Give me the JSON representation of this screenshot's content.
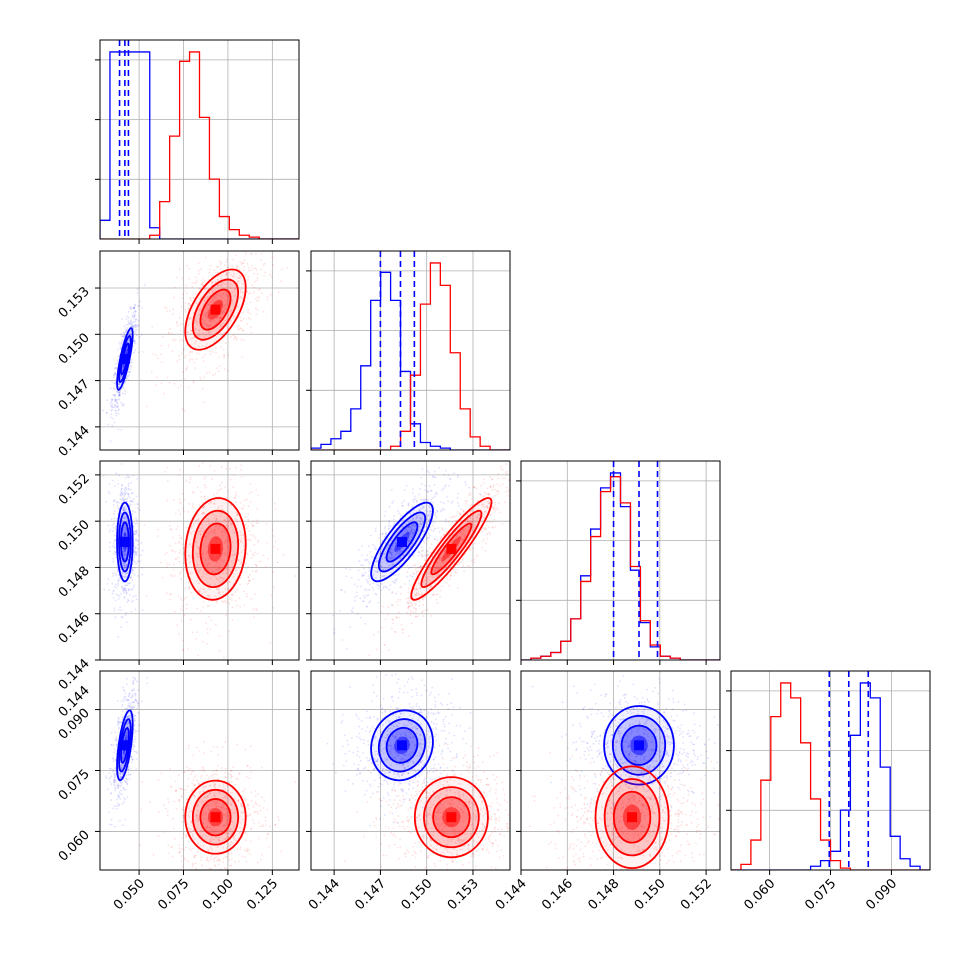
{
  "chart_data": {
    "type": "corner",
    "parameters": [
      {
        "range": [
          0.028,
          0.14
        ],
        "ticks": [
          0.05,
          0.075,
          0.1,
          0.125
        ],
        "tick_labels": [
          "0.050",
          "0.075",
          "0.100",
          "0.125"
        ]
      },
      {
        "range": [
          0.1425,
          0.1554
        ],
        "ticks": [
          0.144,
          0.147,
          0.15,
          0.153
        ],
        "tick_labels": [
          "0.144",
          "0.147",
          "0.150",
          "0.153"
        ]
      },
      {
        "range": [
          0.144,
          0.1526
        ],
        "ticks": [
          0.144,
          0.146,
          0.148,
          0.15,
          0.152
        ],
        "tick_labels": [
          "0.144",
          "0.146",
          "0.148",
          "0.150",
          "0.152"
        ]
      },
      {
        "range": [
          0.0505,
          0.0995
        ],
        "ticks": [
          0.06,
          0.075,
          0.09
        ],
        "tick_labels": [
          "0.060",
          "0.075",
          "0.090"
        ]
      }
    ],
    "y_tick_labels_extra": {
      "row3_top": "0.144"
    },
    "series": [
      {
        "color": "#0000ff",
        "means": [
          0.042,
          0.1484,
          0.1491,
          0.0812
        ],
        "sds": [
          0.0022,
          0.001,
          0.00085,
          0.0043
        ],
        "correlations": {
          "1-0": 0.8,
          "2-0": 0.0,
          "2-1": 0.8,
          "3-0": 0.6,
          "3-1": 0.1,
          "3-2": 0.0
        },
        "quantiles": [
          [
            0.039,
            0.042,
            0.044
          ],
          [
            0.147,
            0.1483,
            0.1492
          ],
          [
            0.148,
            0.1491,
            0.1499
          ],
          [
            0.0747,
            0.0795,
            0.0843
          ]
        ],
        "histograms": [
          [
            0.1,
            1.0,
            1.0,
            1.0,
            1.0,
            0.06,
            0.0,
            0.0,
            0.0,
            0.0,
            0.0,
            0.0,
            0.0,
            0.0,
            0.0,
            0.0,
            0.0,
            0.0,
            0.0,
            0.0
          ],
          [
            0.01,
            0.03,
            0.06,
            0.1,
            0.22,
            0.45,
            0.8,
            0.95,
            0.8,
            0.42,
            0.14,
            0.04,
            0.02,
            0.01,
            0.0,
            0.0,
            0.0,
            0.0,
            0.0,
            0.0
          ],
          [
            0.0,
            0.01,
            0.02,
            0.04,
            0.1,
            0.22,
            0.45,
            0.7,
            0.92,
            1.0,
            0.82,
            0.48,
            0.2,
            0.07,
            0.02,
            0.01,
            0.0,
            0.0,
            0.0,
            0.0
          ],
          [
            0.0,
            0.0,
            0.0,
            0.0,
            0.0,
            0.0,
            0.0,
            0.0,
            0.02,
            0.05,
            0.1,
            0.32,
            0.72,
            1.0,
            0.92,
            0.55,
            0.18,
            0.06,
            0.02,
            0.0
          ]
        ]
      },
      {
        "color": "#ff0000",
        "means": [
          0.093,
          0.1516,
          0.1488,
          0.0635
        ],
        "sds": [
          0.0085,
          0.0013,
          0.0011,
          0.0045
        ],
        "correlations": {
          "1-0": 0.55,
          "2-0": 0.1,
          "2-1": 0.92,
          "3-0": 0.0,
          "3-1": 0.0,
          "3-2": 0.0
        },
        "quantiles": [
          [
            0.086,
            0.093,
            0.1
          ],
          [
            0.1503,
            0.1516,
            0.1529
          ],
          [
            0.1477,
            0.1488,
            0.1499
          ],
          [
            0.059,
            0.0635,
            0.068
          ]
        ],
        "histograms": [
          [
            0.0,
            0.0,
            0.0,
            0.0,
            0.0,
            0.02,
            0.2,
            0.55,
            0.95,
            1.0,
            0.65,
            0.32,
            0.12,
            0.05,
            0.02,
            0.01,
            0.0,
            0.0,
            0.0,
            0.0
          ],
          [
            0.0,
            0.0,
            0.0,
            0.0,
            0.0,
            0.0,
            0.0,
            0.0,
            0.02,
            0.1,
            0.4,
            0.78,
            1.0,
            0.88,
            0.52,
            0.22,
            0.07,
            0.02,
            0.0,
            0.0
          ],
          [
            0.0,
            0.01,
            0.02,
            0.04,
            0.1,
            0.22,
            0.42,
            0.66,
            0.9,
            0.98,
            0.84,
            0.5,
            0.21,
            0.08,
            0.02,
            0.01,
            0.0,
            0.0,
            0.0,
            0.0
          ],
          [
            0.0,
            0.03,
            0.16,
            0.48,
            0.82,
            1.0,
            0.92,
            0.68,
            0.38,
            0.16,
            0.05,
            0.01,
            0.0,
            0.0,
            0.0,
            0.0,
            0.0,
            0.0,
            0.0,
            0.0
          ]
        ]
      }
    ],
    "quantile_lines": {
      "series_color": "#0000ff",
      "style": "dashed"
    },
    "grid": true,
    "legend": "none",
    "title": "",
    "axis_labels": []
  }
}
